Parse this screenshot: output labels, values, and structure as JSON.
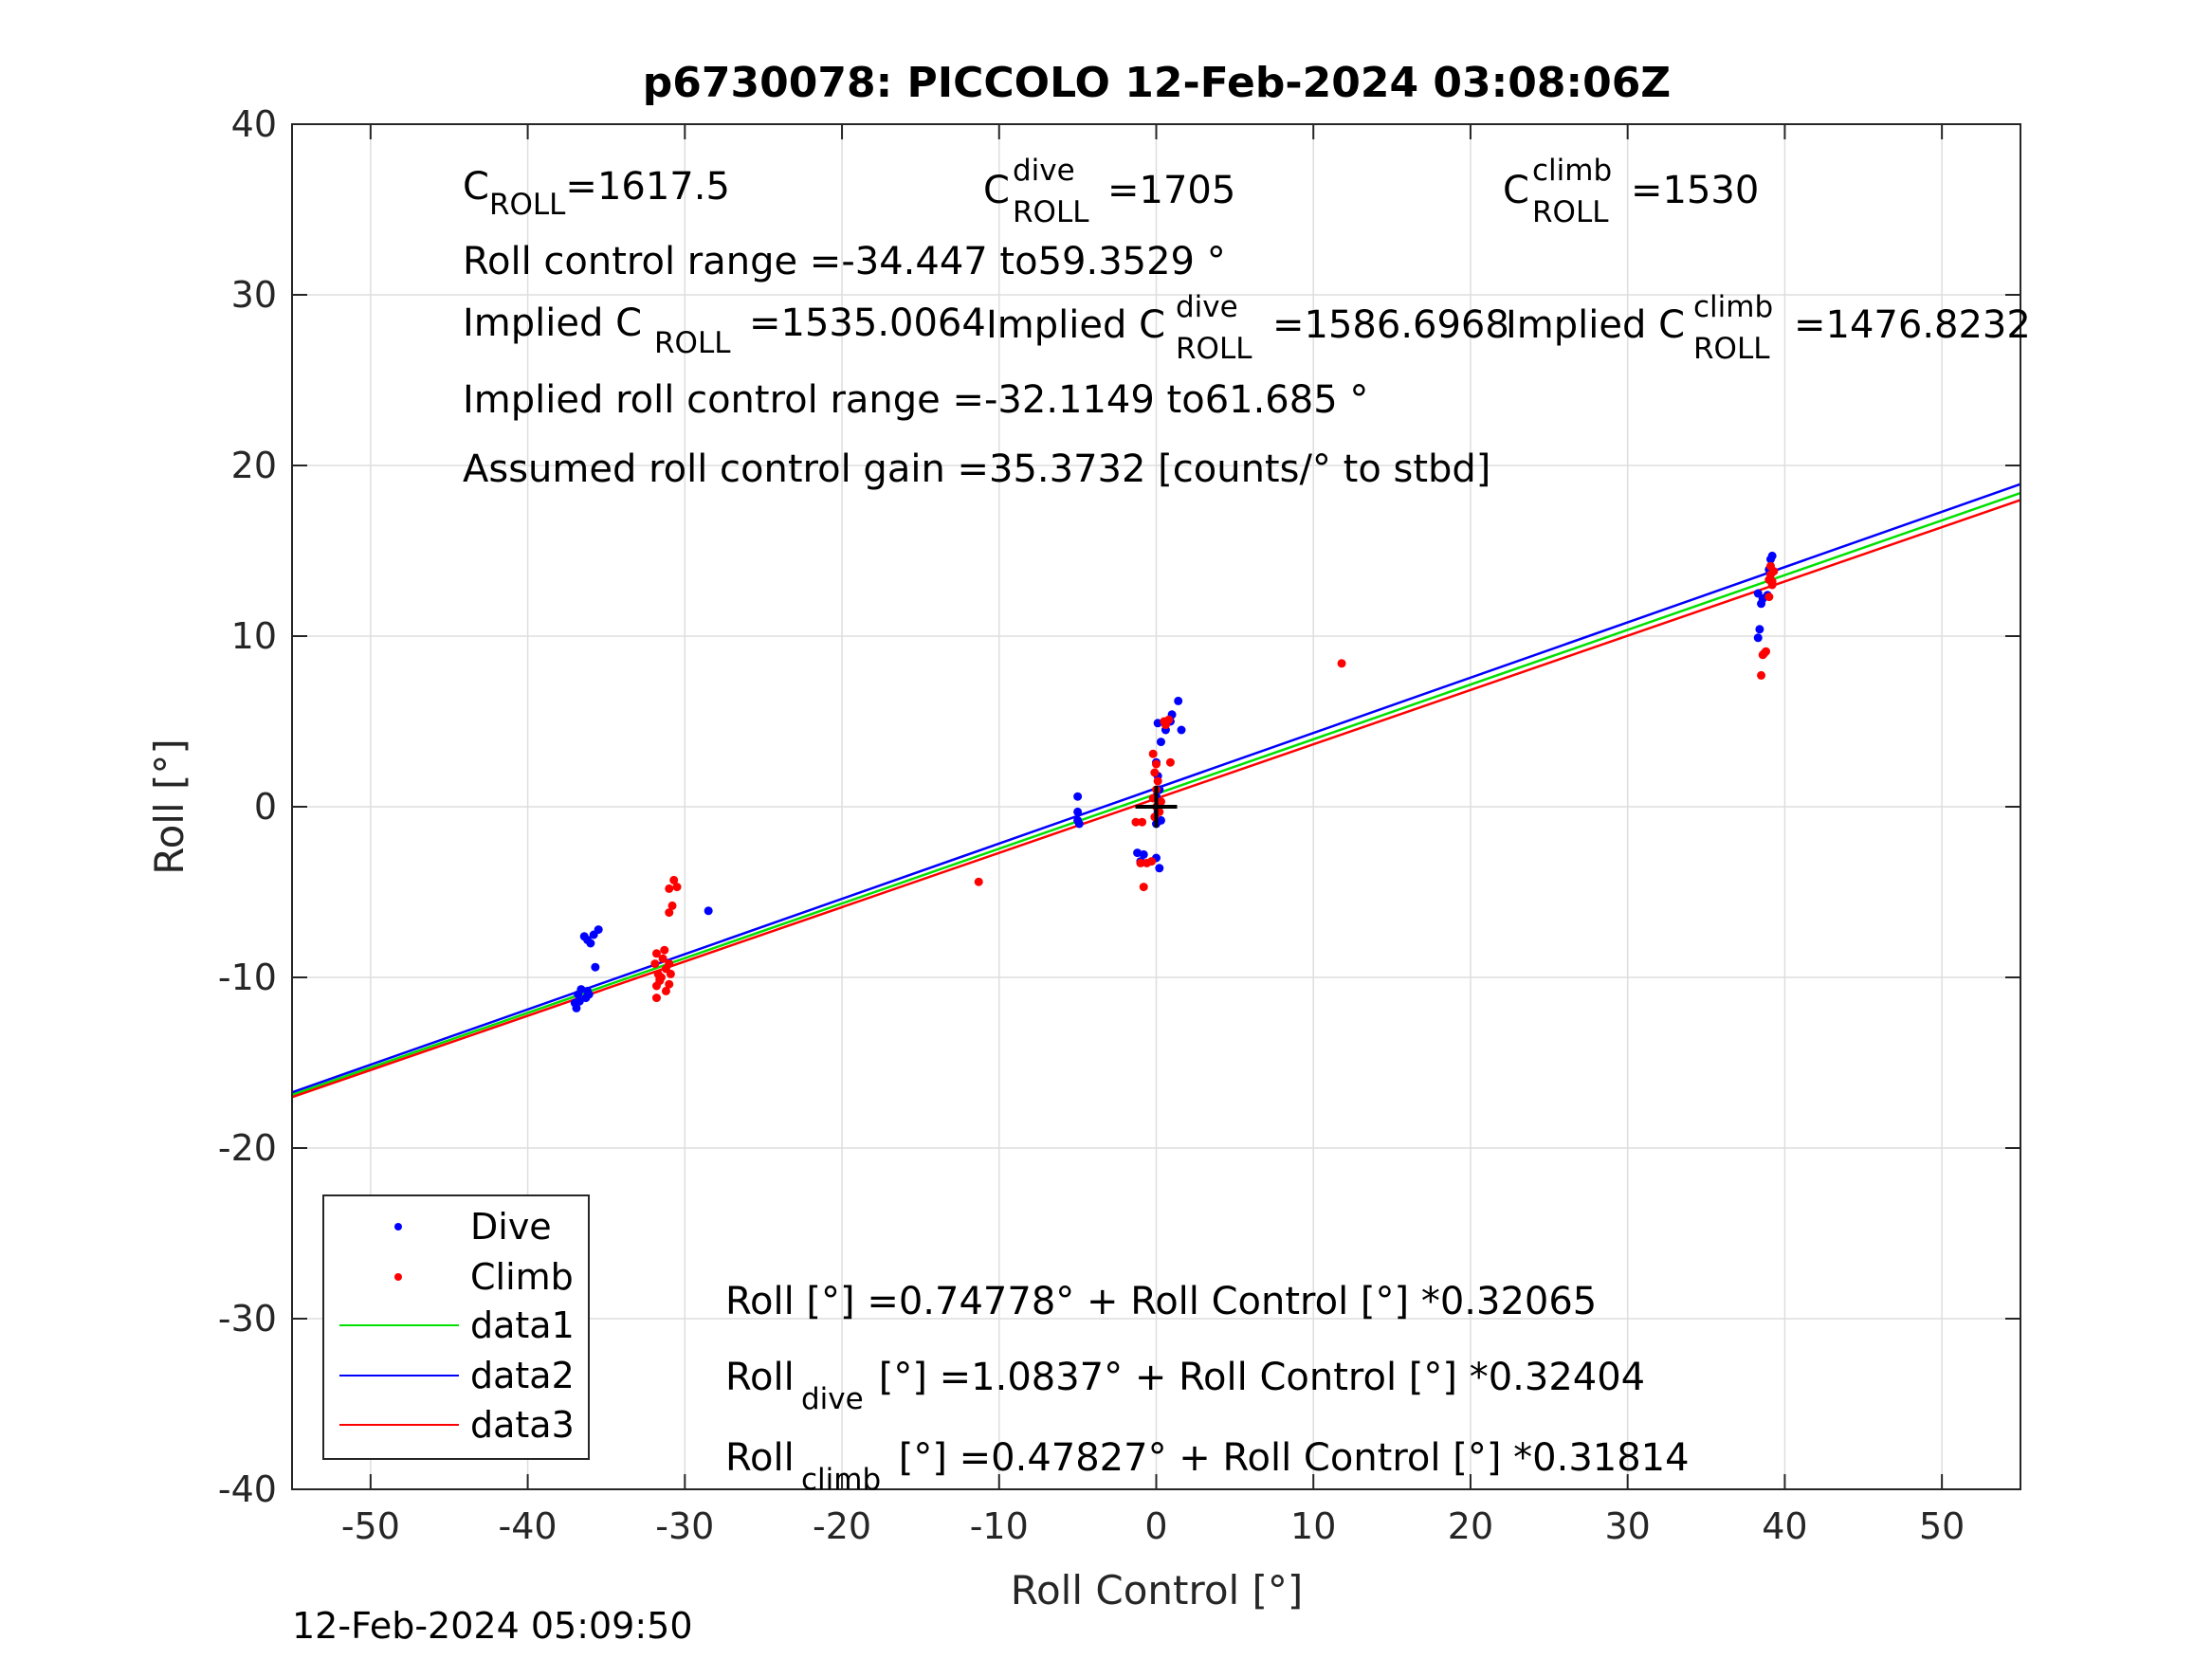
{
  "chart_data": {
    "type": "scatter",
    "title": "p6730078: PICCOLO 12-Feb-2024 03:08:06Z",
    "xlabel": "Roll Control [°]",
    "ylabel": "Roll [°]",
    "xlim": [
      -55,
      55
    ],
    "ylim": [
      -40,
      40
    ],
    "x_ticks": [
      -50,
      -40,
      -30,
      -20,
      -10,
      0,
      10,
      20,
      30,
      40,
      50
    ],
    "y_ticks": [
      -40,
      -30,
      -20,
      -10,
      0,
      10,
      20,
      30,
      40
    ],
    "grid": true,
    "legend_position": "bottom-left",
    "colors": {
      "dive": "#0000ff",
      "climb": "#ff0000",
      "data1": "#00e000",
      "data2": "#0000ff",
      "data3": "#ff0000"
    },
    "series": [
      {
        "name": "Dive",
        "kind": "points",
        "color": "#0000ff",
        "points": [
          [
            -37,
            -11.5
          ],
          [
            -36.8,
            -11
          ],
          [
            -36.6,
            -10.7
          ],
          [
            -36.9,
            -11.8
          ],
          [
            -36.3,
            -11.2
          ],
          [
            -36.1,
            -11
          ],
          [
            -36.7,
            -11.4
          ],
          [
            -36.2,
            -10.8
          ],
          [
            -36.4,
            -7.6
          ],
          [
            -36,
            -8
          ],
          [
            -35.8,
            -7.5
          ],
          [
            -35.5,
            -7.2
          ],
          [
            -35.7,
            -9.4
          ],
          [
            -36.2,
            -7.8
          ],
          [
            -28.5,
            -6.1
          ],
          [
            -5,
            0.6
          ],
          [
            -5,
            -0.3
          ],
          [
            -5,
            -0.8
          ],
          [
            -4.9,
            -1
          ],
          [
            -1.2,
            -2.7
          ],
          [
            -1,
            -3.2
          ],
          [
            -0.8,
            -2.8
          ],
          [
            0,
            -3
          ],
          [
            0.2,
            -3.6
          ],
          [
            0.1,
            4.9
          ],
          [
            0.3,
            3.8
          ],
          [
            0,
            2.6
          ],
          [
            0.1,
            1.8
          ],
          [
            0.2,
            1
          ],
          [
            0,
            0.6
          ],
          [
            0.1,
            -0.3
          ],
          [
            0,
            -1
          ],
          [
            0.3,
            -0.8
          ],
          [
            0.6,
            4.5
          ],
          [
            0.9,
            5
          ],
          [
            1,
            5.4
          ],
          [
            1.4,
            6.2
          ],
          [
            1.6,
            4.5
          ],
          [
            0.7,
            5
          ],
          [
            38.3,
            12.5
          ],
          [
            38.6,
            12.2
          ],
          [
            38.9,
            12.4
          ],
          [
            39,
            13.9
          ],
          [
            39.1,
            14.5
          ],
          [
            39.2,
            14.7
          ],
          [
            38.3,
            9.9
          ],
          [
            38.4,
            10.4
          ],
          [
            38.5,
            11.9
          ]
        ]
      },
      {
        "name": "Climb",
        "kind": "points",
        "color": "#ff0000",
        "points": [
          [
            -31.8,
            -8.6
          ],
          [
            -31.9,
            -9.2
          ],
          [
            -31.7,
            -9.8
          ],
          [
            -31.6,
            -10.2
          ],
          [
            -31.8,
            -10.5
          ],
          [
            -31.5,
            -10
          ],
          [
            -31.2,
            -9.5
          ],
          [
            -31,
            -10.4
          ],
          [
            -30.9,
            -9.8
          ],
          [
            -31.2,
            -10.8
          ],
          [
            -31.8,
            -11.2
          ],
          [
            -31.3,
            -8.4
          ],
          [
            -31.6,
            -10.1
          ],
          [
            -31,
            -9.2
          ],
          [
            -31.4,
            -8.9
          ],
          [
            -31,
            -4.8
          ],
          [
            -30.7,
            -4.3
          ],
          [
            -30.5,
            -4.7
          ],
          [
            -30.8,
            -5.8
          ],
          [
            -31,
            -6.2
          ],
          [
            -11.3,
            -4.4
          ],
          [
            -1.3,
            -0.9
          ],
          [
            -0.9,
            -0.9
          ],
          [
            -1,
            -3.3
          ],
          [
            -0.6,
            -3.3
          ],
          [
            -0.3,
            -3.2
          ],
          [
            -0.8,
            -4.7
          ],
          [
            -0.2,
            3.1
          ],
          [
            0,
            2.5
          ],
          [
            -0.1,
            2
          ],
          [
            0.1,
            1.5
          ],
          [
            0,
            1
          ],
          [
            -0.2,
            0.5
          ],
          [
            0,
            0
          ],
          [
            0.2,
            -0.3
          ],
          [
            -0.1,
            -0.6
          ],
          [
            0.3,
            0.3
          ],
          [
            0.5,
            5
          ],
          [
            0.6,
            4.8
          ],
          [
            0.8,
            5.1
          ],
          [
            0.9,
            2.6
          ],
          [
            11.8,
            8.4
          ],
          [
            38.5,
            7.7
          ],
          [
            38.6,
            8.9
          ],
          [
            38.8,
            9.1
          ],
          [
            38.7,
            9
          ],
          [
            39,
            13.3
          ],
          [
            39.1,
            13.6
          ],
          [
            39.2,
            13.2
          ],
          [
            39.3,
            13.8
          ],
          [
            39.1,
            14.1
          ],
          [
            39.2,
            13
          ],
          [
            39,
            12.3
          ]
        ]
      },
      {
        "name": "data1",
        "kind": "line",
        "color": "#00e000",
        "intercept": 0.74778,
        "slope": 0.32065
      },
      {
        "name": "data2",
        "kind": "line",
        "color": "#0000ff",
        "intercept": 1.0837,
        "slope": 0.32404
      },
      {
        "name": "data3",
        "kind": "line",
        "color": "#ff0000",
        "intercept": 0.47827,
        "slope": 0.31814
      }
    ],
    "crosshair": {
      "x": 0,
      "y": 0,
      "color": "#000000"
    },
    "annotations": {
      "croll_prefix": "C",
      "croll_sub": "ROLL",
      "croll_value": "=1617.5",
      "dive_prefix": "C",
      "dive_sup": "dive",
      "dive_sub": "ROLL",
      "dive_value": "=1705",
      "climb_prefix": "C",
      "climb_sup": "climb",
      "climb_sub": "ROLL",
      "climb_value": "=1530",
      "range_text": "Roll control range =-34.447 to59.3529 °",
      "implied_prefix": "Implied C",
      "implied_sub": "ROLL",
      "implied_value": "=1535.0064",
      "implied_dive_prefix": "Implied C",
      "implied_dive_sup": "dive",
      "implied_dive_sub": "ROLL",
      "implied_dive_value": "=1586.6968",
      "implied_climb_prefix": "Implied C",
      "implied_climb_sup": "climb",
      "implied_climb_sub": "ROLL",
      "implied_climb_value": "=1476.8232",
      "implied_range_text": "Implied roll control range =-32.1149 to61.685 °",
      "gain_text": "Assumed roll control gain =35.3732 [counts/° to stbd]",
      "eq1_text": "Roll [°] =0.74778° + Roll Control [°] *0.32065",
      "eq2_prefix": "Roll",
      "eq2_sub": "dive",
      "eq2_rest": " [°] =1.0837° + Roll Control [°] *0.32404",
      "eq3_prefix": "Roll",
      "eq3_sub": "climb",
      "eq3_rest": " [°] =0.47827° + Roll Control [°] *0.31814"
    },
    "footer": "12-Feb-2024 05:09:50"
  }
}
